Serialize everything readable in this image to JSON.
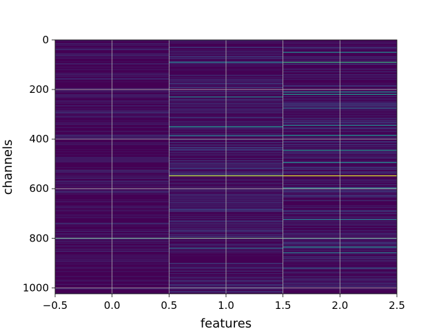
{
  "chart_data": {
    "type": "heatmap",
    "title": "",
    "xlabel": "features",
    "ylabel": "channels",
    "x_ticks": [
      -0.5,
      0.0,
      0.5,
      1.0,
      1.5,
      2.0,
      2.5
    ],
    "x_tick_labels": [
      "−0.5",
      "0.0",
      "0.5",
      "1.0",
      "1.5",
      "2.0",
      "2.5"
    ],
    "y_ticks": [
      0,
      200,
      400,
      600,
      800,
      1000
    ],
    "y_tick_labels": [
      "0",
      "200",
      "400",
      "600",
      "800",
      "1000"
    ],
    "xlim": [
      -0.5,
      2.5
    ],
    "ylim": [
      1024,
      0
    ],
    "grid": true,
    "colormap": "viridis",
    "background_color": "#440154",
    "columns": [
      0,
      1,
      2
    ],
    "rows": 1024,
    "bright_rows": [
      {
        "column": 0,
        "channel": 800,
        "intensity": 0.55
      },
      {
        "column": 1,
        "channel": 90,
        "intensity": 0.4
      },
      {
        "column": 1,
        "channel": 230,
        "intensity": 0.45
      },
      {
        "column": 1,
        "channel": 350,
        "intensity": 0.5
      },
      {
        "column": 1,
        "channel": 385,
        "intensity": 0.4
      },
      {
        "column": 1,
        "channel": 548,
        "intensity": 0.9
      },
      {
        "column": 1,
        "channel": 800,
        "intensity": 0.6
      },
      {
        "column": 1,
        "channel": 840,
        "intensity": 0.35
      },
      {
        "column": 2,
        "channel": 50,
        "intensity": 0.45
      },
      {
        "column": 2,
        "channel": 90,
        "intensity": 0.6
      },
      {
        "column": 2,
        "channel": 210,
        "intensity": 0.45
      },
      {
        "column": 2,
        "channel": 220,
        "intensity": 0.5
      },
      {
        "column": 2,
        "channel": 275,
        "intensity": 0.35
      },
      {
        "column": 2,
        "channel": 345,
        "intensity": 0.45
      },
      {
        "column": 2,
        "channel": 385,
        "intensity": 0.5
      },
      {
        "column": 2,
        "channel": 445,
        "intensity": 0.5
      },
      {
        "column": 2,
        "channel": 495,
        "intensity": 0.45
      },
      {
        "column": 2,
        "channel": 548,
        "intensity": 0.95
      },
      {
        "column": 2,
        "channel": 598,
        "intensity": 0.5
      },
      {
        "column": 2,
        "channel": 725,
        "intensity": 0.4
      },
      {
        "column": 2,
        "channel": 800,
        "intensity": 0.55
      },
      {
        "column": 2,
        "channel": 835,
        "intensity": 0.45
      },
      {
        "column": 2,
        "channel": 858,
        "intensity": 0.4
      },
      {
        "column": 2,
        "channel": 920,
        "intensity": 0.3
      }
    ]
  }
}
